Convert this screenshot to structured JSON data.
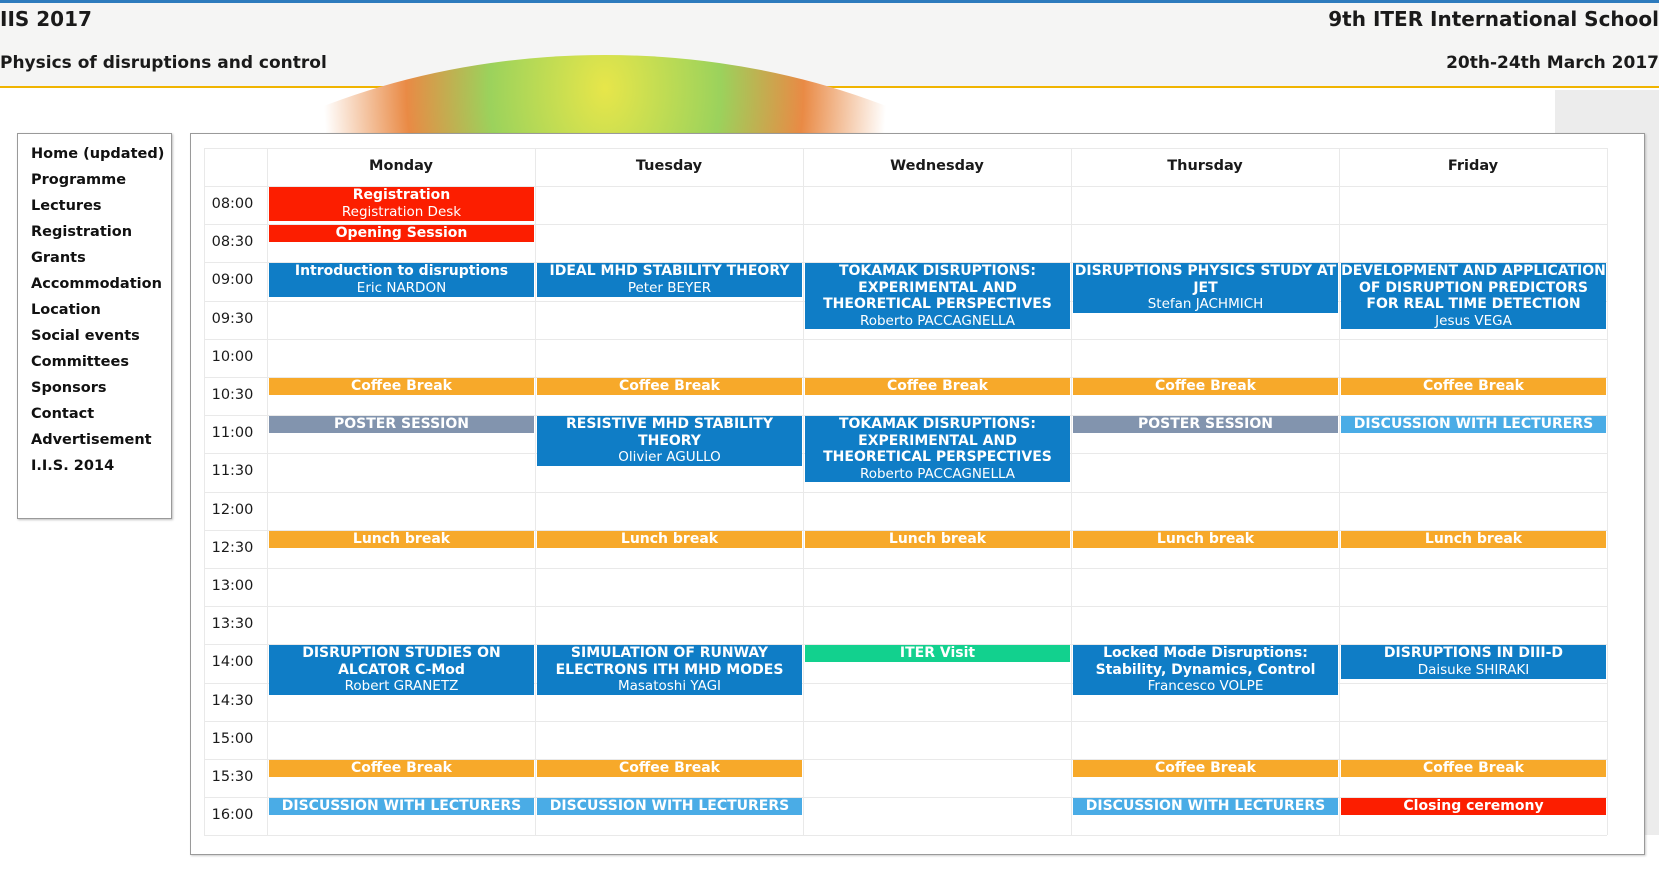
{
  "header": {
    "title": "IIS 2017",
    "school": "9th ITER International School",
    "subtitle": "Physics of disruptions and control",
    "dates": "20th-24th March 2017"
  },
  "nav": {
    "items": [
      "Home (updated)",
      "Programme",
      "Lectures",
      "Registration",
      "Grants",
      "Accommodation",
      "Location",
      "Social events",
      "Committees",
      "Sponsors",
      "Contact",
      "Advertisement",
      "I.I.S. 2014"
    ]
  },
  "schedule": {
    "days": [
      "Monday",
      "Tuesday",
      "Wednesday",
      "Thursday",
      "Friday"
    ],
    "times": [
      "08:00",
      "08:30",
      "09:00",
      "09:30",
      "10:00",
      "10:30",
      "11:00",
      "11:30",
      "12:00",
      "12:30",
      "13:00",
      "13:30",
      "14:00",
      "14:30",
      "15:00",
      "15:30",
      "16:00"
    ],
    "events": [
      {
        "day": 0,
        "start": "08:00",
        "end": "08:30",
        "title": "Registration",
        "speaker": "Registration Desk",
        "kind": "ceremony"
      },
      {
        "day": 0,
        "start": "08:30",
        "end": "09:00",
        "title": "Opening Session",
        "speaker": "",
        "kind": "ceremony"
      },
      {
        "day": 0,
        "start": "09:00",
        "end": "10:30",
        "title": "Introduction to disruptions",
        "speaker": "Eric NARDON",
        "kind": "lecture"
      },
      {
        "day": 1,
        "start": "09:00",
        "end": "10:30",
        "title": "IDEAL MHD STABILITY THEORY",
        "speaker": "Peter BEYER",
        "kind": "lecture"
      },
      {
        "day": 2,
        "start": "09:00",
        "end": "10:30",
        "title": "TOKAMAK DISRUPTIONS: EXPERIMENTAL AND THEORETICAL PERSPECTIVES",
        "speaker": "Roberto PACCAGNELLA",
        "kind": "lecture"
      },
      {
        "day": 3,
        "start": "09:00",
        "end": "10:30",
        "title": "DISRUPTIONS PHYSICS STUDY AT JET",
        "speaker": "Stefan JACHMICH",
        "kind": "lecture"
      },
      {
        "day": 4,
        "start": "09:00",
        "end": "10:30",
        "title": "DEVELOPMENT AND APPLICATION OF DISRUPTION PREDICTORS FOR REAL TIME DETECTION",
        "speaker": "Jesus VEGA",
        "kind": "lecture"
      },
      {
        "day": 0,
        "start": "10:30",
        "end": "11:00",
        "title": "Coffee Break",
        "speaker": "",
        "kind": "break"
      },
      {
        "day": 1,
        "start": "10:30",
        "end": "11:00",
        "title": "Coffee Break",
        "speaker": "",
        "kind": "break"
      },
      {
        "day": 2,
        "start": "10:30",
        "end": "11:00",
        "title": "Coffee Break",
        "speaker": "",
        "kind": "break"
      },
      {
        "day": 3,
        "start": "10:30",
        "end": "11:00",
        "title": "Coffee Break",
        "speaker": "",
        "kind": "break"
      },
      {
        "day": 4,
        "start": "10:30",
        "end": "11:00",
        "title": "Coffee Break",
        "speaker": "",
        "kind": "break"
      },
      {
        "day": 0,
        "start": "11:00",
        "end": "12:30",
        "title": "POSTER SESSION",
        "speaker": "",
        "kind": "poster"
      },
      {
        "day": 1,
        "start": "11:00",
        "end": "12:30",
        "title": "RESISTIVE MHD STABILITY THEORY",
        "speaker": "Olivier AGULLO",
        "kind": "lecture"
      },
      {
        "day": 2,
        "start": "11:00",
        "end": "12:30",
        "title": "TOKAMAK DISRUPTIONS: EXPERIMENTAL AND THEORETICAL PERSPECTIVES",
        "speaker": "Roberto PACCAGNELLA",
        "kind": "lecture"
      },
      {
        "day": 3,
        "start": "11:00",
        "end": "12:30",
        "title": "POSTER SESSION",
        "speaker": "",
        "kind": "poster"
      },
      {
        "day": 4,
        "start": "11:00",
        "end": "12:30",
        "title": "DISCUSSION WITH LECTURERS",
        "speaker": "",
        "kind": "discussion"
      },
      {
        "day": 0,
        "start": "12:30",
        "end": "14:00",
        "title": "Lunch break",
        "speaker": "",
        "kind": "break"
      },
      {
        "day": 1,
        "start": "12:30",
        "end": "14:00",
        "title": "Lunch break",
        "speaker": "",
        "kind": "break"
      },
      {
        "day": 2,
        "start": "12:30",
        "end": "14:00",
        "title": "Lunch break",
        "speaker": "",
        "kind": "break"
      },
      {
        "day": 3,
        "start": "12:30",
        "end": "14:00",
        "title": "Lunch break",
        "speaker": "",
        "kind": "break"
      },
      {
        "day": 4,
        "start": "12:30",
        "end": "14:00",
        "title": "Lunch break",
        "speaker": "",
        "kind": "break"
      },
      {
        "day": 0,
        "start": "14:00",
        "end": "15:30",
        "title": "DISRUPTION STUDIES ON ALCATOR C-Mod",
        "speaker": "Robert GRANETZ",
        "kind": "lecture"
      },
      {
        "day": 1,
        "start": "14:00",
        "end": "15:30",
        "title": "SIMULATION OF RUNWAY ELECTRONS ITH MHD MODES",
        "speaker": "Masatoshi YAGI",
        "kind": "lecture"
      },
      {
        "day": 2,
        "start": "14:00",
        "end": "17:00",
        "title": "ITER Visit",
        "speaker": "",
        "kind": "visit"
      },
      {
        "day": 3,
        "start": "14:00",
        "end": "15:30",
        "title": "Locked Mode Disruptions: Stability, Dynamics, Control",
        "speaker": "Francesco VOLPE",
        "kind": "lecture"
      },
      {
        "day": 4,
        "start": "14:00",
        "end": "15:30",
        "title": "DISRUPTIONS IN DIII-D",
        "speaker": "Daisuke SHIRAKI",
        "kind": "lecture"
      },
      {
        "day": 0,
        "start": "15:30",
        "end": "16:00",
        "title": "Coffee Break",
        "speaker": "",
        "kind": "break"
      },
      {
        "day": 1,
        "start": "15:30",
        "end": "16:00",
        "title": "Coffee Break",
        "speaker": "",
        "kind": "break"
      },
      {
        "day": 3,
        "start": "15:30",
        "end": "16:00",
        "title": "Coffee Break",
        "speaker": "",
        "kind": "break"
      },
      {
        "day": 4,
        "start": "15:30",
        "end": "16:00",
        "title": "Coffee Break",
        "speaker": "",
        "kind": "break"
      },
      {
        "day": 0,
        "start": "16:00",
        "end": "17:00",
        "title": "DISCUSSION WITH LECTURERS",
        "speaker": "",
        "kind": "discussion"
      },
      {
        "day": 1,
        "start": "16:00",
        "end": "17:00",
        "title": "DISCUSSION WITH LECTURERS",
        "speaker": "",
        "kind": "discussion"
      },
      {
        "day": 3,
        "start": "16:00",
        "end": "17:00",
        "title": "DISCUSSION WITH LECTURERS",
        "speaker": "",
        "kind": "discussion"
      },
      {
        "day": 4,
        "start": "16:00",
        "end": "17:00",
        "title": "Closing ceremony",
        "speaker": "",
        "kind": "ceremony"
      }
    ]
  },
  "colors": {
    "lecture": "#0f7dc6",
    "break": "#f7a92a",
    "poster": "#8294ae",
    "discussion": "#4aace6",
    "ceremony": "#fc1e00",
    "visit": "#12d18e",
    "header_border_top": "#2d7bbd",
    "header_border_bottom": "#f0b400"
  }
}
